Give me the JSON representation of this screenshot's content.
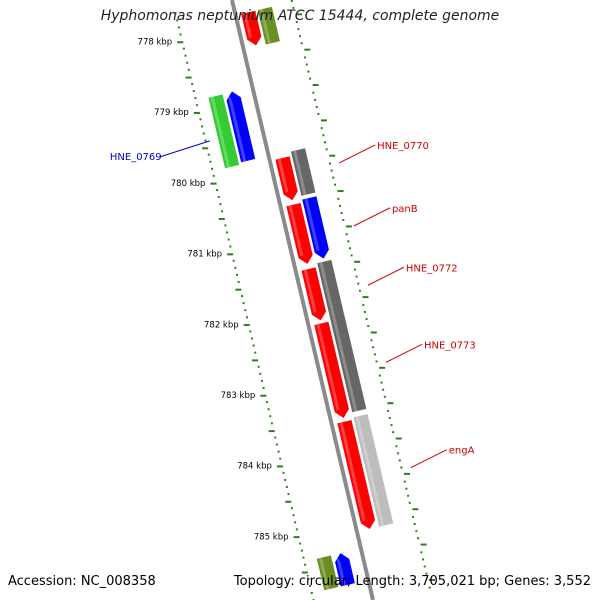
{
  "map": {
    "title": "Hyphomonas neptunium ATCC 15444, complete genome",
    "accession": "Accession: NC_008358",
    "stats": "Topology: circular; Length: 3,705,021 bp; Genes: 3,552",
    "ticks": [
      {
        "label": "778 kbp",
        "kb": 778
      },
      {
        "label": "779 kbp",
        "kb": 779
      },
      {
        "label": "780 kbp",
        "kb": 780
      },
      {
        "label": "781 kbp",
        "kb": 781
      },
      {
        "label": "782 kbp",
        "kb": 782
      },
      {
        "label": "783 kbp",
        "kb": 783
      },
      {
        "label": "784 kbp",
        "kb": 784
      },
      {
        "label": "785 kbp",
        "kb": 785
      }
    ],
    "colors": {
      "backbone": "#8a8a8a",
      "tick": "#2e7d1e",
      "red": "#ff0000",
      "blue": "#0000ff",
      "green": "#33cc33",
      "olive": "#6b8e23",
      "gray": "#666666",
      "lightgray": "#bdbdbd",
      "label_red": "#cc0000",
      "label_blue": "#0000cc"
    },
    "features": [
      {
        "lane": "inner",
        "start": 777.82,
        "end": 778.28,
        "color": "red",
        "arrow": "end"
      },
      {
        "lane": "innermost",
        "start": 777.82,
        "end": 778.3,
        "color": "olive",
        "arrow": "none"
      },
      {
        "lane": "outer",
        "start": 778.84,
        "end": 779.83,
        "color": "green",
        "arrow": "none"
      },
      {
        "lane": "outermost",
        "start": 778.83,
        "end": 779.8,
        "color": "blue",
        "arrow": "start"
      },
      {
        "lane": "inner",
        "start": 779.88,
        "end": 780.47,
        "color": "red",
        "arrow": "end"
      },
      {
        "lane": "innermost",
        "start": 779.82,
        "end": 780.44,
        "color": "gray",
        "arrow": "none"
      },
      {
        "lane": "inner",
        "start": 780.54,
        "end": 781.37,
        "color": "red",
        "arrow": "end"
      },
      {
        "lane": "innermost",
        "start": 780.5,
        "end": 781.35,
        "color": "blue",
        "arrow": "end"
      },
      {
        "lane": "inner",
        "start": 781.45,
        "end": 782.17,
        "color": "red",
        "arrow": "end"
      },
      {
        "lane": "inner",
        "start": 782.22,
        "end": 783.55,
        "color": "red",
        "arrow": "end"
      },
      {
        "lane": "innermost",
        "start": 781.4,
        "end": 783.5,
        "color": "gray",
        "arrow": "none"
      },
      {
        "lane": "inner",
        "start": 783.61,
        "end": 785.12,
        "color": "red",
        "arrow": "end"
      },
      {
        "lane": "innermost",
        "start": 783.58,
        "end": 785.12,
        "color": "lightgray",
        "arrow": "none"
      },
      {
        "lane": "outer",
        "start": 785.36,
        "end": 785.8,
        "color": "olive",
        "arrow": "none"
      },
      {
        "lane": "outermost",
        "start": 785.36,
        "end": 785.8,
        "color": "blue",
        "arrow": "start"
      }
    ],
    "gene_labels": [
      {
        "text": "HNE_0769",
        "kb": 779.42,
        "side": "left",
        "color": "label_blue"
      },
      {
        "text": "HNE_0770",
        "kb": 780.05,
        "side": "right",
        "color": "label_red"
      },
      {
        "text": "panB",
        "kb": 780.94,
        "side": "right",
        "color": "label_red"
      },
      {
        "text": "HNE_0772",
        "kb": 781.78,
        "side": "right",
        "color": "label_red"
      },
      {
        "text": "HNE_0773",
        "kb": 782.87,
        "side": "right",
        "color": "label_red"
      },
      {
        "text": "engA",
        "kb": 784.36,
        "side": "right",
        "color": "label_red"
      }
    ]
  }
}
